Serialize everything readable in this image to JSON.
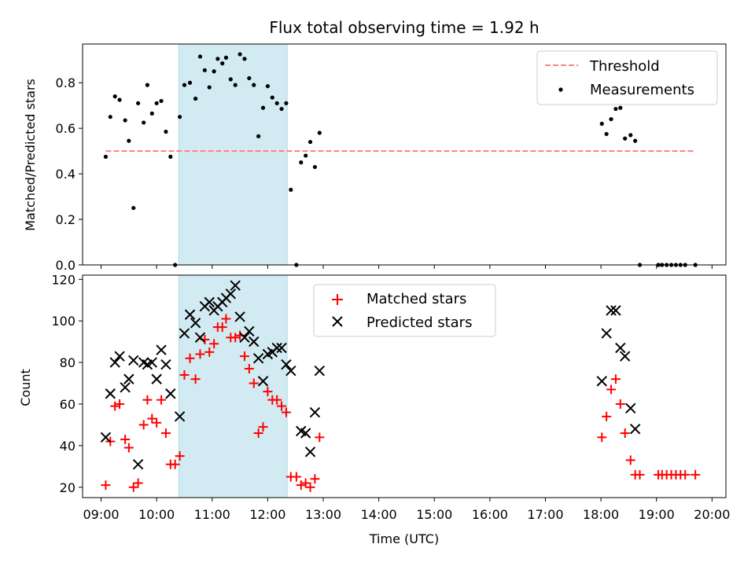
{
  "chart_data": [
    {
      "type": "scatter",
      "title": "Flux total observing time = 1.92 h",
      "xlabel": "",
      "ylabel": "Matched/Predicted stars",
      "xlim": [
        "08:40",
        "20:15"
      ],
      "ylim": [
        0,
        0.97
      ],
      "yticks": [
        "0.0",
        "0.2",
        "0.4",
        "0.6",
        "0.8"
      ],
      "shaded_interval": [
        "10:24",
        "12:21"
      ],
      "shaded_color": "#add8e6",
      "legend_position": "upper right",
      "threshold": {
        "name": "Threshold",
        "value": 0.5,
        "x_range": [
          "09:05",
          "19:42"
        ],
        "color": "#ff7f7f",
        "style": "dashed"
      },
      "series": [
        {
          "name": "Measurements",
          "color": "#000000",
          "marker": "dot",
          "points": [
            [
              "09:05",
              0.475
            ],
            [
              "09:10",
              0.65
            ],
            [
              "09:15",
              0.74
            ],
            [
              "09:20",
              0.725
            ],
            [
              "09:26",
              0.635
            ],
            [
              "09:30",
              0.545
            ],
            [
              "09:35",
              0.25
            ],
            [
              "09:40",
              0.71
            ],
            [
              "09:46",
              0.625
            ],
            [
              "09:50",
              0.79
            ],
            [
              "09:55",
              0.665
            ],
            [
              "10:00",
              0.71
            ],
            [
              "10:05",
              0.72
            ],
            [
              "10:10",
              0.585
            ],
            [
              "10:15",
              0.475
            ],
            [
              "10:20",
              0.0
            ],
            [
              "10:25",
              0.65
            ],
            [
              "10:30",
              0.79
            ],
            [
              "10:36",
              0.8
            ],
            [
              "10:42",
              0.73
            ],
            [
              "10:47",
              0.915
            ],
            [
              "10:52",
              0.855
            ],
            [
              "10:57",
              0.78
            ],
            [
              "11:02",
              0.85
            ],
            [
              "11:06",
              0.905
            ],
            [
              "11:11",
              0.885
            ],
            [
              "11:15",
              0.91
            ],
            [
              "11:20",
              0.815
            ],
            [
              "11:25",
              0.79
            ],
            [
              "11:30",
              0.925
            ],
            [
              "11:35",
              0.905
            ],
            [
              "11:40",
              0.82
            ],
            [
              "11:45",
              0.79
            ],
            [
              "11:50",
              0.565
            ],
            [
              "11:55",
              0.69
            ],
            [
              "12:00",
              0.785
            ],
            [
              "12:05",
              0.735
            ],
            [
              "12:10",
              0.71
            ],
            [
              "12:15",
              0.685
            ],
            [
              "12:20",
              0.71
            ],
            [
              "12:25",
              0.33
            ],
            [
              "12:31",
              0.0
            ],
            [
              "12:36",
              0.45
            ],
            [
              "12:41",
              0.48
            ],
            [
              "12:46",
              0.54
            ],
            [
              "12:51",
              0.43
            ],
            [
              "12:56",
              0.58
            ],
            [
              "18:01",
              0.62
            ],
            [
              "18:06",
              0.575
            ],
            [
              "18:11",
              0.64
            ],
            [
              "18:16",
              0.685
            ],
            [
              "18:21",
              0.69
            ],
            [
              "18:26",
              0.555
            ],
            [
              "18:32",
              0.57
            ],
            [
              "18:37",
              0.545
            ],
            [
              "18:42",
              0.0
            ],
            [
              "19:02",
              0.0
            ],
            [
              "19:06",
              0.0
            ],
            [
              "19:11",
              0.0
            ],
            [
              "19:16",
              0.0
            ],
            [
              "19:21",
              0.0
            ],
            [
              "19:26",
              0.0
            ],
            [
              "19:31",
              0.0
            ],
            [
              "19:42",
              0.0
            ]
          ]
        }
      ]
    },
    {
      "type": "scatter",
      "title": "",
      "xlabel": "Time (UTC)",
      "ylabel": "Count",
      "xlim": [
        "08:40",
        "20:15"
      ],
      "ylim": [
        15,
        122
      ],
      "yticks": [
        "20",
        "40",
        "60",
        "80",
        "100",
        "120"
      ],
      "xticks": [
        "09:00",
        "10:00",
        "11:00",
        "12:00",
        "13:00",
        "14:00",
        "15:00",
        "16:00",
        "17:00",
        "18:00",
        "19:00",
        "20:00"
      ],
      "shaded_interval": [
        "10:24",
        "12:21"
      ],
      "shaded_color": "#add8e6",
      "legend_position": "upper center",
      "series": [
        {
          "name": "Matched stars",
          "color": "#ff0000",
          "marker": "plus",
          "points": [
            [
              "09:05",
              21
            ],
            [
              "09:10",
              42
            ],
            [
              "09:15",
              59
            ],
            [
              "09:20",
              60
            ],
            [
              "09:26",
              43
            ],
            [
              "09:30",
              39
            ],
            [
              "09:35",
              20
            ],
            [
              "09:40",
              22
            ],
            [
              "09:46",
              50
            ],
            [
              "09:50",
              62
            ],
            [
              "09:55",
              53
            ],
            [
              "10:00",
              51
            ],
            [
              "10:05",
              62
            ],
            [
              "10:10",
              46
            ],
            [
              "10:15",
              31
            ],
            [
              "10:20",
              31
            ],
            [
              "10:25",
              35
            ],
            [
              "10:30",
              74
            ],
            [
              "10:36",
              82
            ],
            [
              "10:42",
              72
            ],
            [
              "10:47",
              84
            ],
            [
              "10:52",
              91
            ],
            [
              "10:57",
              85
            ],
            [
              "11:02",
              89
            ],
            [
              "11:06",
              97
            ],
            [
              "11:11",
              97
            ],
            [
              "11:15",
              101
            ],
            [
              "11:20",
              92
            ],
            [
              "11:25",
              92
            ],
            [
              "11:30",
              93
            ],
            [
              "11:35",
              83
            ],
            [
              "11:40",
              77
            ],
            [
              "11:45",
              70
            ],
            [
              "11:50",
              46
            ],
            [
              "11:55",
              49
            ],
            [
              "12:00",
              66
            ],
            [
              "12:05",
              62
            ],
            [
              "12:10",
              62
            ],
            [
              "12:15",
              59
            ],
            [
              "12:20",
              56
            ],
            [
              "12:25",
              25
            ],
            [
              "12:31",
              25
            ],
            [
              "12:36",
              21
            ],
            [
              "12:41",
              22
            ],
            [
              "12:46",
              20
            ],
            [
              "12:51",
              24
            ],
            [
              "12:56",
              44
            ],
            [
              "18:01",
              44
            ],
            [
              "18:06",
              54
            ],
            [
              "18:11",
              67
            ],
            [
              "18:16",
              72
            ],
            [
              "18:21",
              60
            ],
            [
              "18:26",
              46
            ],
            [
              "18:32",
              33
            ],
            [
              "18:37",
              26
            ],
            [
              "18:42",
              26
            ],
            [
              "19:02",
              26
            ],
            [
              "19:06",
              26
            ],
            [
              "19:11",
              26
            ],
            [
              "19:16",
              26
            ],
            [
              "19:21",
              26
            ],
            [
              "19:26",
              26
            ],
            [
              "19:31",
              26
            ],
            [
              "19:42",
              26
            ]
          ]
        },
        {
          "name": "Predicted stars",
          "color": "#000000",
          "marker": "x",
          "points": [
            [
              "09:05",
              44
            ],
            [
              "09:10",
              65
            ],
            [
              "09:15",
              80
            ],
            [
              "09:20",
              83
            ],
            [
              "09:26",
              68
            ],
            [
              "09:30",
              72
            ],
            [
              "09:35",
              81
            ],
            [
              "09:40",
              31
            ],
            [
              "09:46",
              80
            ],
            [
              "09:50",
              79
            ],
            [
              "09:55",
              80
            ],
            [
              "10:00",
              72
            ],
            [
              "10:05",
              86
            ],
            [
              "10:10",
              79
            ],
            [
              "10:15",
              65
            ],
            [
              "10:25",
              54
            ],
            [
              "10:30",
              94
            ],
            [
              "10:36",
              103
            ],
            [
              "10:42",
              99
            ],
            [
              "10:47",
              92
            ],
            [
              "10:52",
              107
            ],
            [
              "10:57",
              109
            ],
            [
              "11:02",
              105
            ],
            [
              "11:06",
              107
            ],
            [
              "11:11",
              109
            ],
            [
              "11:15",
              111
            ],
            [
              "11:20",
              113
            ],
            [
              "11:25",
              117
            ],
            [
              "11:30",
              102
            ],
            [
              "11:35",
              92
            ],
            [
              "11:40",
              95
            ],
            [
              "11:45",
              90
            ],
            [
              "11:50",
              82
            ],
            [
              "11:55",
              71
            ],
            [
              "12:00",
              84
            ],
            [
              "12:05",
              85
            ],
            [
              "12:10",
              87
            ],
            [
              "12:15",
              87
            ],
            [
              "12:20",
              79
            ],
            [
              "12:25",
              76
            ],
            [
              "12:36",
              47
            ],
            [
              "12:41",
              46
            ],
            [
              "12:46",
              37
            ],
            [
              "12:51",
              56
            ],
            [
              "12:56",
              76
            ],
            [
              "18:01",
              71
            ],
            [
              "18:06",
              94
            ],
            [
              "18:11",
              105
            ],
            [
              "18:16",
              105
            ],
            [
              "18:21",
              87
            ],
            [
              "18:26",
              83
            ],
            [
              "18:32",
              58
            ],
            [
              "18:37",
              48
            ]
          ]
        }
      ]
    }
  ]
}
